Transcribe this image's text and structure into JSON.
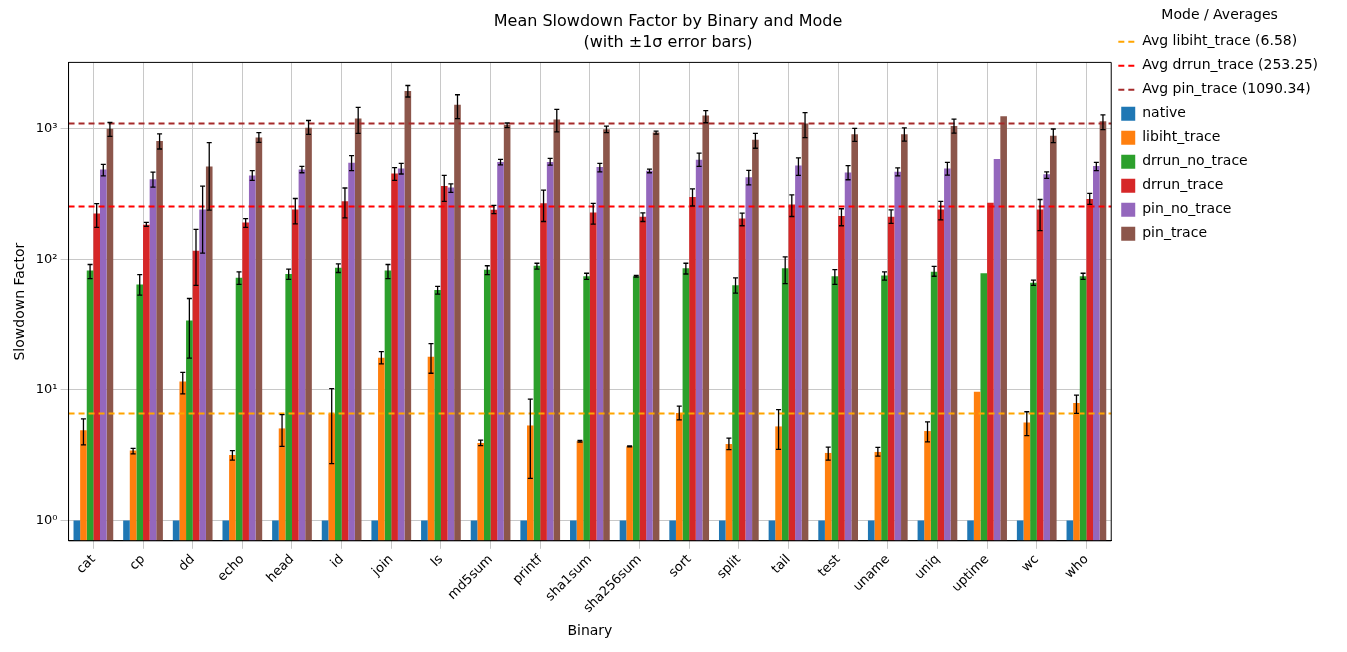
{
  "chart_data": {
    "type": "bar",
    "title": "Mean Slowdown Factor by Binary and Mode",
    "subtitle": "(with ±1σ error bars)",
    "xlabel": "Binary",
    "ylabel": "Slowdown Factor",
    "legend_title": "Mode / Averages",
    "categories": [
      "cat",
      "cp",
      "dd",
      "echo",
      "head",
      "id",
      "join",
      "ls",
      "md5sum",
      "printf",
      "sha1sum",
      "sha256sum",
      "sort",
      "split",
      "tail",
      "test",
      "uname",
      "uniq",
      "uptime",
      "wc",
      "who"
    ],
    "series": [
      {
        "name": "native",
        "color": "#1f77b4",
        "values": [
          1,
          1,
          1,
          1,
          1,
          1,
          1,
          1,
          1,
          1,
          1,
          1,
          1,
          1,
          1,
          1,
          1,
          1,
          1,
          1,
          1
        ]
      },
      {
        "name": "libiht_trace",
        "color": "#ff7f0e",
        "values": [
          4.9,
          3.43,
          11.6,
          3.18,
          5.07,
          6.57,
          17.6,
          17.9,
          3.92,
          5.34,
          4.05,
          3.7,
          6.65,
          3.85,
          5.25,
          3.29,
          3.35,
          4.84,
          9.66,
          5.63,
          7.94
        ],
        "errors": [
          [
            3.8,
            6.0
          ],
          [
            3.24,
            3.57
          ],
          [
            9.3,
            13.6
          ],
          [
            2.9,
            3.43
          ],
          [
            3.7,
            6.46
          ],
          [
            2.73,
            10.2
          ],
          [
            15.8,
            19.6
          ],
          [
            13.4,
            22.6
          ],
          [
            3.74,
            4.12
          ],
          [
            2.1,
            8.5
          ],
          [
            3.99,
            4.1
          ],
          [
            3.67,
            3.73
          ],
          [
            5.9,
            7.5
          ],
          [
            3.49,
            4.27
          ],
          [
            3.5,
            7.05
          ],
          [
            2.9,
            3.65
          ],
          [
            3.11,
            3.63
          ],
          [
            4.0,
            5.68
          ],
          null,
          [
            4.47,
            6.8
          ],
          [
            6.6,
            9.1
          ]
        ]
      },
      {
        "name": "drrun_no_trace",
        "color": "#2ca02c",
        "values": [
          82,
          64,
          34,
          72,
          77,
          86,
          82,
          58,
          83,
          89,
          74,
          74,
          85,
          63,
          85,
          74,
          75,
          80,
          78,
          66,
          74
        ],
        "errors": [
          [
            71,
            91
          ],
          [
            53,
            76
          ],
          [
            17.5,
            50
          ],
          [
            64,
            80
          ],
          [
            70,
            84
          ],
          [
            79,
            92
          ],
          [
            71,
            91
          ],
          [
            54,
            62
          ],
          [
            76,
            89
          ],
          [
            84,
            93
          ],
          [
            70,
            78
          ],
          [
            73,
            75
          ],
          [
            77,
            93
          ],
          [
            55,
            72
          ],
          [
            65,
            104
          ],
          [
            64,
            83
          ],
          [
            69,
            80
          ],
          [
            74,
            88
          ],
          null,
          [
            63,
            69
          ],
          [
            70,
            78
          ]
        ]
      },
      {
        "name": "drrun_trace",
        "color": "#d62728",
        "values": [
          223,
          183,
          116,
          191,
          240,
          277,
          453,
          362,
          239,
          268,
          227,
          211,
          299,
          205,
          262,
          214,
          211,
          240,
          270,
          240,
          289
        ],
        "errors": [
          [
            175,
            266
          ],
          [
            178,
            191
          ],
          [
            63,
            169
          ],
          [
            175,
            204
          ],
          [
            186,
            291
          ],
          [
            207,
            350
          ],
          [
            400,
            502
          ],
          [
            277,
            438
          ],
          [
            223,
            258
          ],
          [
            194,
            337
          ],
          [
            185,
            267
          ],
          [
            194,
            226
          ],
          [
            255,
            345
          ],
          [
            180,
            225
          ],
          [
            212,
            310
          ],
          [
            180,
            243
          ],
          [
            188,
            238
          ],
          [
            200,
            277
          ],
          null,
          [
            165,
            286
          ],
          [
            262,
            318
          ]
        ]
      },
      {
        "name": "pin_no_trace",
        "color": "#9467bd",
        "values": [
          485,
          408,
          240,
          437,
          485,
          547,
          493,
          353,
          554,
          554,
          508,
          474,
          576,
          423,
          520,
          460,
          466,
          493,
          584,
          447,
          516
        ],
        "errors": [
          [
            433,
            530
          ],
          [
            355,
            463
          ],
          [
            111,
            362
          ],
          [
            400,
            475
          ],
          [
            458,
            512
          ],
          [
            475,
            620
          ],
          [
            448,
            540
          ],
          [
            324,
            377
          ],
          [
            527,
            580
          ],
          [
            523,
            590
          ],
          [
            465,
            540
          ],
          [
            458,
            488
          ],
          [
            512,
            647
          ],
          [
            370,
            478
          ],
          [
            437,
            595
          ],
          [
            405,
            520
          ],
          [
            433,
            500
          ],
          [
            440,
            550
          ],
          null,
          [
            415,
            465
          ],
          [
            475,
            550
          ]
        ]
      },
      {
        "name": "pin_trace",
        "color": "#8c564b",
        "values": [
          996,
          800,
          511,
          853,
          1014,
          1191,
          1930,
          1517,
          1067,
          1170,
          984,
          930,
          1254,
          819,
          1092,
          903,
          903,
          1043,
          1240,
          880,
          1137
        ],
        "errors": [
          [
            870,
            1110
          ],
          [
            696,
            907
          ],
          [
            237,
            780
          ],
          [
            781,
            930
          ],
          [
            900,
            1150
          ],
          [
            915,
            1450
          ],
          [
            1740,
            2130
          ],
          [
            1190,
            1810
          ],
          [
            1015,
            1100
          ],
          [
            940,
            1400
          ],
          [
            930,
            1040
          ],
          [
            905,
            955
          ],
          [
            1105,
            1370
          ],
          [
            705,
            915
          ],
          [
            850,
            1320
          ],
          [
            795,
            1000
          ],
          [
            800,
            1010
          ],
          [
            920,
            1180
          ],
          null,
          [
            780,
            990
          ],
          [
            980,
            1270
          ]
        ]
      }
    ],
    "ref_lines": [
      {
        "axis": "y",
        "value": 6.58,
        "label": "Avg libiht_trace (6.58)",
        "color": "#ffa500",
        "line_style": "dashed"
      },
      {
        "axis": "y",
        "value": 253.25,
        "label": "Avg drrun_trace (253.25)",
        "color": "#ff0000",
        "line_style": "dashed"
      },
      {
        "axis": "y",
        "value": 1090.34,
        "label": "Avg pin_trace (1090.34)",
        "color": "#a52a2a",
        "line_style": "dashed"
      }
    ],
    "log": "y",
    "ylim": [
      0.7,
      3200
    ],
    "yticks": [
      {
        "value": 1,
        "label": "10⁰"
      },
      {
        "value": 10,
        "label": "10¹"
      },
      {
        "value": 100,
        "label": "10²"
      },
      {
        "value": 1000,
        "label": "10³"
      }
    ],
    "grid": true,
    "legend": "right"
  }
}
